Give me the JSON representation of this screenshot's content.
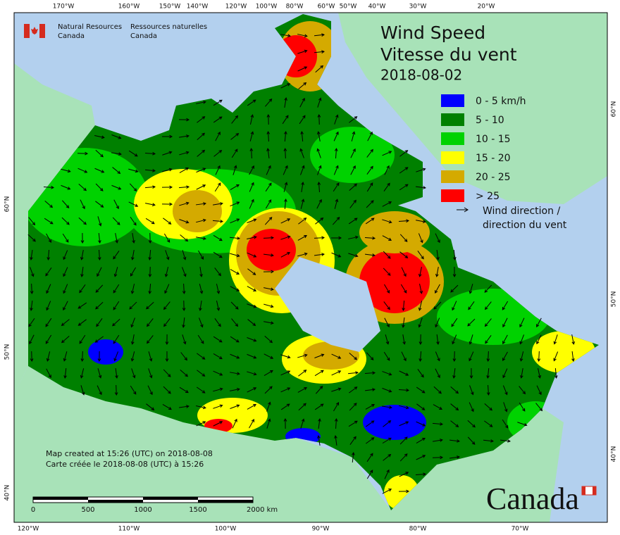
{
  "agency": {
    "en_line1": "Natural Resources",
    "en_line2": "Canada",
    "fr_line1": "Ressources naturelles",
    "fr_line2": "Canada"
  },
  "title": {
    "en": "Wind Speed",
    "fr": "Vitesse du vent",
    "date": "2018-08-02"
  },
  "legend": {
    "items": [
      {
        "label": "0 - 5 km/h",
        "color": "#0000ff"
      },
      {
        "label": "5 - 10",
        "color": "#008000"
      },
      {
        "label": "10 - 15",
        "color": "#00d200"
      },
      {
        "label": "15 - 20",
        "color": "#ffff00"
      },
      {
        "label": "20 - 25",
        "color": "#d4aa00"
      },
      {
        "label": "> 25",
        "color": "#ff0000"
      }
    ],
    "direction_en": "Wind direction /",
    "direction_fr": "direction du vent"
  },
  "graticule": {
    "top": [
      "170°W",
      "160°W",
      "150°W",
      "140°W",
      "120°W",
      "100°W",
      "80°W",
      "60°W",
      "50°W",
      "40°W",
      "30°W",
      "20°W"
    ],
    "bottom": [
      "120°W",
      "110°W",
      "100°W",
      "90°W",
      "80°W",
      "70°W"
    ],
    "left": [
      "60°N",
      "50°N",
      "40°N"
    ],
    "right": [
      "60°N",
      "50°N",
      "40°N"
    ]
  },
  "notes": {
    "en": "Map created at 15:26 (UTC) on 2018-08-08",
    "fr": "Carte créée le 2018-08-08 (UTC) à 15:26"
  },
  "scale_bar": [
    "0",
    "500",
    "1000",
    "1500",
    "2000 km"
  ],
  "wordmark": "Canada"
}
